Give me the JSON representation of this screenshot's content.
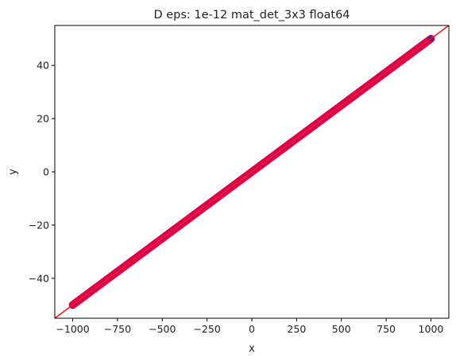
{
  "chart_data": {
    "type": "scatter",
    "title": "D eps: 1e-12 mat_det_3x3 float64",
    "xlabel": "x",
    "ylabel": "y",
    "xlim": [
      -1100,
      1100
    ],
    "ylim": [
      -55,
      55
    ],
    "x_ticks": [
      -1000,
      -750,
      -500,
      -250,
      0,
      250,
      500,
      750,
      1000
    ],
    "x_tick_labels": [
      "−1000",
      "−750",
      "−500",
      "−250",
      "0",
      "250",
      "500",
      "750",
      "1000"
    ],
    "y_ticks": [
      -40,
      -20,
      0,
      20,
      40
    ],
    "y_tick_labels": [
      "−40",
      "−20",
      "0",
      "20",
      "40"
    ],
    "grid": false,
    "series": [
      {
        "marker": "circle",
        "color": "#2a2aa8",
        "edge_color": "#e0004f",
        "x_range": [
          -1000,
          1000
        ],
        "slope": 0.05,
        "x": [
          -1000,
          -750,
          -500,
          -250,
          0,
          250,
          500,
          750,
          1000
        ],
        "y": [
          -50,
          -37.5,
          -25,
          -12.5,
          0,
          12.5,
          25,
          37.5,
          50
        ]
      }
    ],
    "reference_line": {
      "color": "#ee1c1c",
      "slope": 0.05,
      "intercept": 0
    }
  }
}
